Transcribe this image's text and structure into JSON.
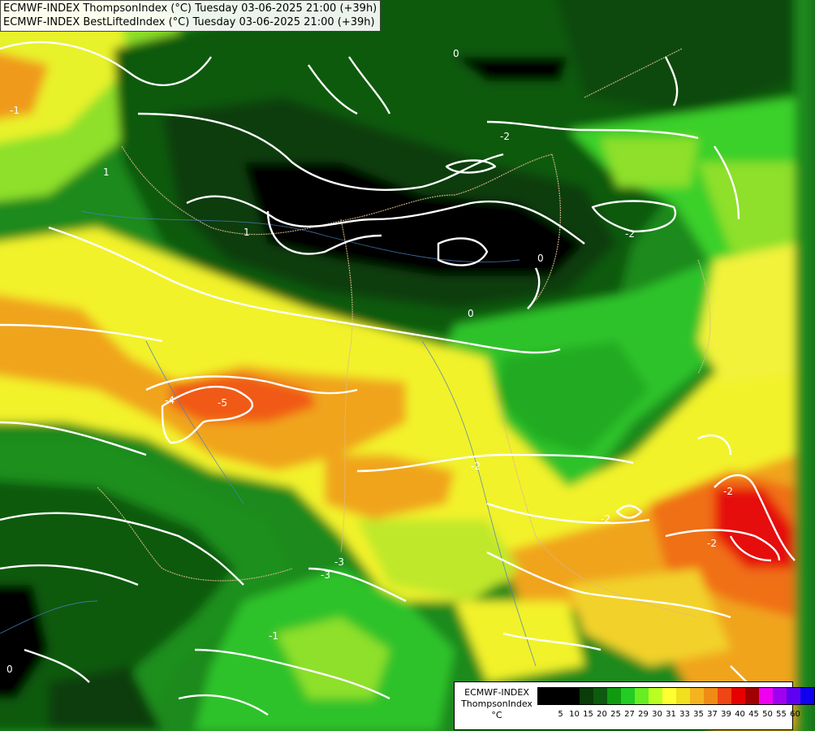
{
  "header": {
    "line1": "ECMWF-INDEX ThompsonIndex (°C) Tuesday 03-06-2025 21:00 (+39h)",
    "line2": "ECMWF-INDEX BestLiftedIndex (°C) Tuesday 03-06-2025 21:00 (+39h)"
  },
  "legend": {
    "title1": "ECMWF-INDEX",
    "title2": "ThompsonIndex",
    "unit": "°C",
    "colors": [
      "#000000",
      "#000000",
      "#000000",
      "#0a3c0a",
      "#0e5a0e",
      "#109a10",
      "#22cc22",
      "#66ee22",
      "#bbff22",
      "#ffff33",
      "#f0e01e",
      "#f5b41e",
      "#f08c14",
      "#f04614",
      "#e60000",
      "#a00000",
      "#f000f0",
      "#a000f0",
      "#6000f0",
      "#1000f0"
    ],
    "ticks": [
      "5",
      "10",
      "15",
      "20",
      "25",
      "27",
      "29",
      "30",
      "31",
      "33",
      "35",
      "37",
      "39",
      "40",
      "45",
      "50",
      "55",
      "60"
    ]
  },
  "contour_labels": [
    "0",
    "0",
    "0",
    "-2",
    "-2",
    "1",
    "1",
    "-1",
    "-4",
    "-5",
    "-2",
    "-2",
    "-2",
    "-3",
    "-3",
    "-1",
    "0",
    "-2"
  ]
}
